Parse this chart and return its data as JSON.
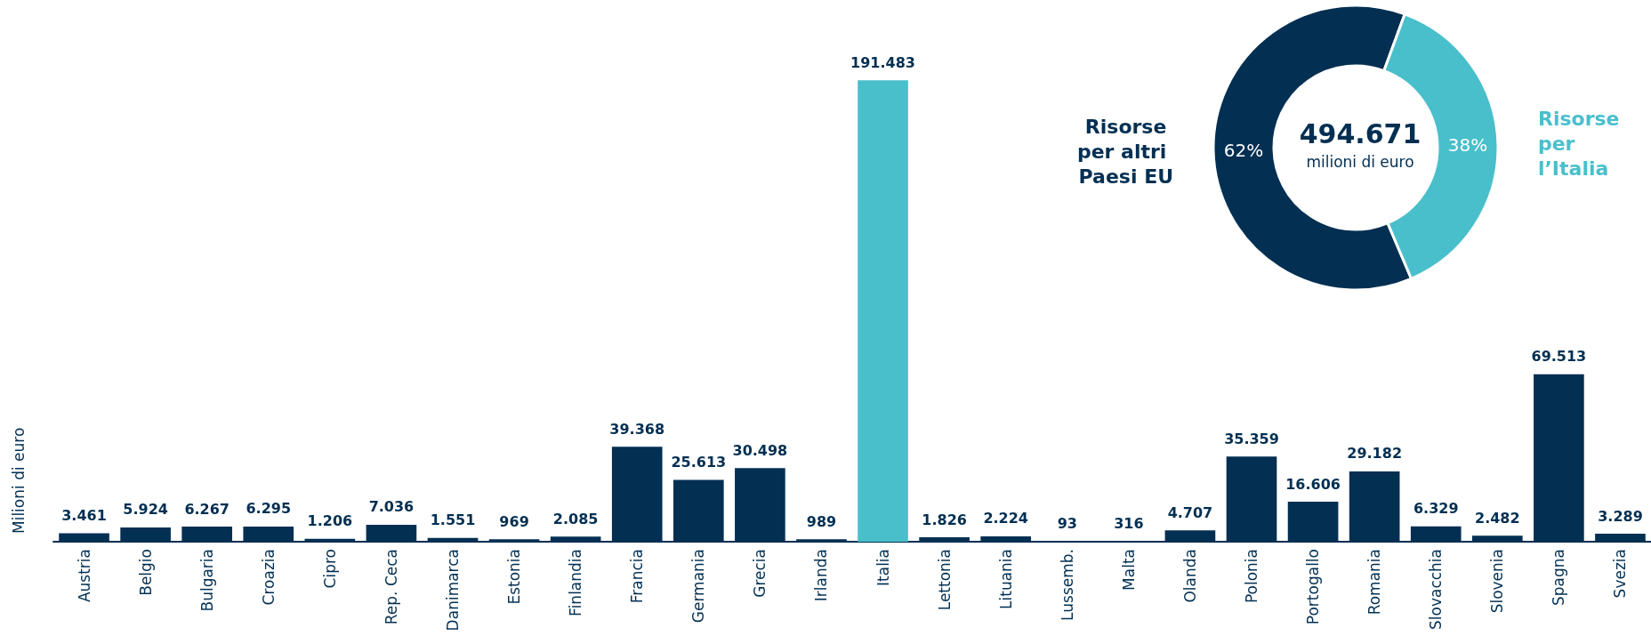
{
  "chart_data": [
    {
      "type": "bar",
      "ylabel": "Milioni di euro",
      "categories": [
        "Austria",
        "Belgio",
        "Bulgaria",
        "Croazia",
        "Cipro",
        "Rep. Ceca",
        "Danimarca",
        "Estonia",
        "Finlandia",
        "Francia",
        "Germania",
        "Grecia",
        "Irlanda",
        "Italia",
        "Lettonia",
        "Lituania",
        "Lussemb.",
        "Malta",
        "Olanda",
        "Polonia",
        "Portogallo",
        "Romania",
        "Slovacchia",
        "Slovenia",
        "Spagna",
        "Svezia"
      ],
      "values": [
        3461,
        5924,
        6267,
        6295,
        1206,
        7036,
        1551,
        969,
        2085,
        39368,
        25613,
        30498,
        989,
        191483,
        1826,
        2224,
        93,
        316,
        4707,
        35359,
        16606,
        29182,
        6329,
        2482,
        69513,
        3289
      ],
      "value_labels": [
        "3.461",
        "5.924",
        "6.267",
        "6.295",
        "1.206",
        "7.036",
        "1.551",
        "969",
        "2.085",
        "39.368",
        "25.613",
        "30.498",
        "989",
        "191.483",
        "1.826",
        "2.224",
        "93",
        "316",
        "4.707",
        "35.359",
        "16.606",
        "29.182",
        "6.329",
        "2.482",
        "69.513",
        "3.289"
      ],
      "colors": [
        "#022f52",
        "#022f52",
        "#022f52",
        "#022f52",
        "#022f52",
        "#022f52",
        "#022f52",
        "#022f52",
        "#022f52",
        "#022f52",
        "#022f52",
        "#022f52",
        "#022f52",
        "#4abfcc",
        "#022f52",
        "#022f52",
        "#022f52",
        "#022f52",
        "#022f52",
        "#022f52",
        "#022f52",
        "#022f52",
        "#022f52",
        "#022f52",
        "#022f52",
        "#022f52"
      ],
      "grid": false,
      "legend": false
    },
    {
      "type": "donut",
      "title": "494.671",
      "subtitle": "milioni di euro",
      "categories": [
        "Risorse per altri Paesi EU",
        "Risorse per l’Italia"
      ],
      "values": [
        62,
        38
      ],
      "value_labels": [
        "62%",
        "38%"
      ],
      "colors": [
        "#022f52",
        "#4abfcc"
      ],
      "legend": false
    }
  ]
}
